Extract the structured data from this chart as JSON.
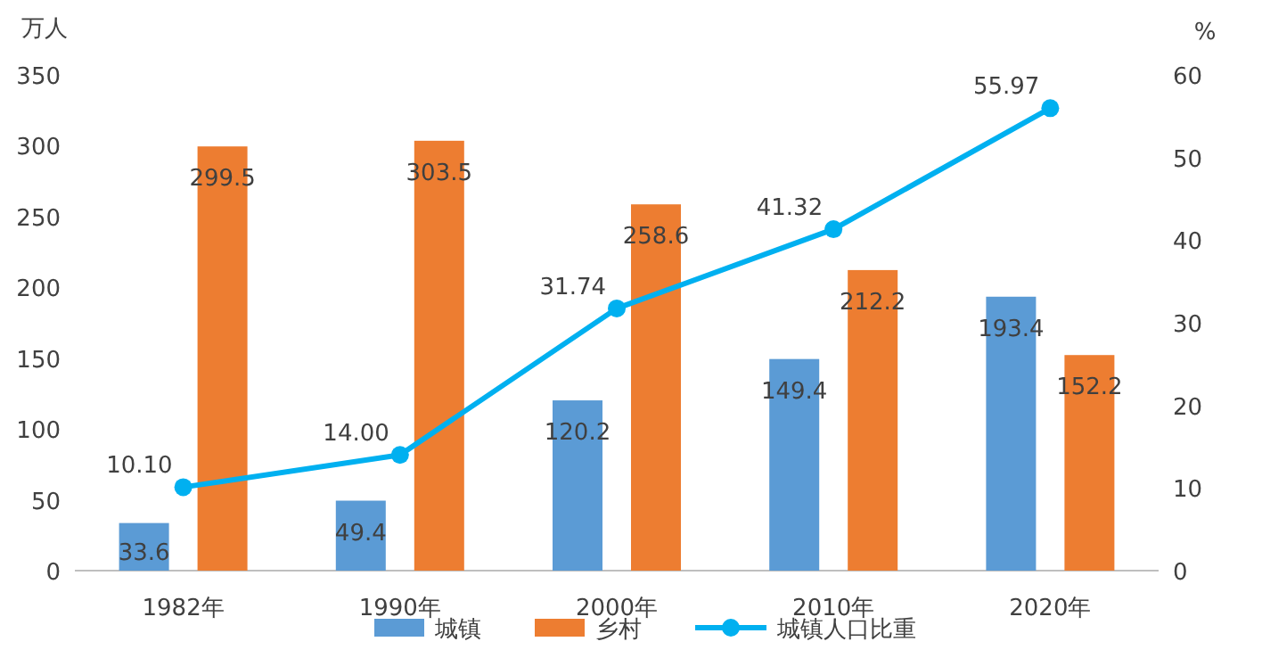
{
  "chart_data": {
    "type": "bar",
    "categories": [
      "1982年",
      "1990年",
      "2000年",
      "2010年",
      "2020年"
    ],
    "ylabel": "万人",
    "y2label": "%",
    "ylim": [
      0,
      350
    ],
    "yticks": [
      0,
      50,
      100,
      150,
      200,
      250,
      300,
      350
    ],
    "y2lim": [
      0,
      60
    ],
    "y2ticks": [
      0,
      10,
      20,
      30,
      40,
      50,
      60
    ],
    "legend": "bottom",
    "series": [
      {
        "name": "城镇",
        "color": "#5b9bd5",
        "values": [
          33.6,
          49.4,
          120.2,
          149.4,
          193.4
        ],
        "value_labels": [
          "33.6",
          "49.4",
          "120.2",
          "149.4",
          "193.4"
        ]
      },
      {
        "name": "乡村",
        "color": "#ed7d31",
        "values": [
          299.5,
          303.5,
          258.6,
          212.2,
          152.2
        ],
        "value_labels": [
          "299.5",
          "303.5",
          "258.6",
          "212.2",
          "152.2"
        ]
      },
      {
        "name": "城镇人口比重",
        "type": "line",
        "axis": "y2",
        "marker": "circle",
        "color": "#00b0f0",
        "values": [
          10.1,
          14.0,
          31.74,
          41.32,
          55.97
        ],
        "value_labels": [
          "10.10",
          "14.00",
          "31.74",
          "41.32",
          "55.97"
        ]
      }
    ]
  }
}
